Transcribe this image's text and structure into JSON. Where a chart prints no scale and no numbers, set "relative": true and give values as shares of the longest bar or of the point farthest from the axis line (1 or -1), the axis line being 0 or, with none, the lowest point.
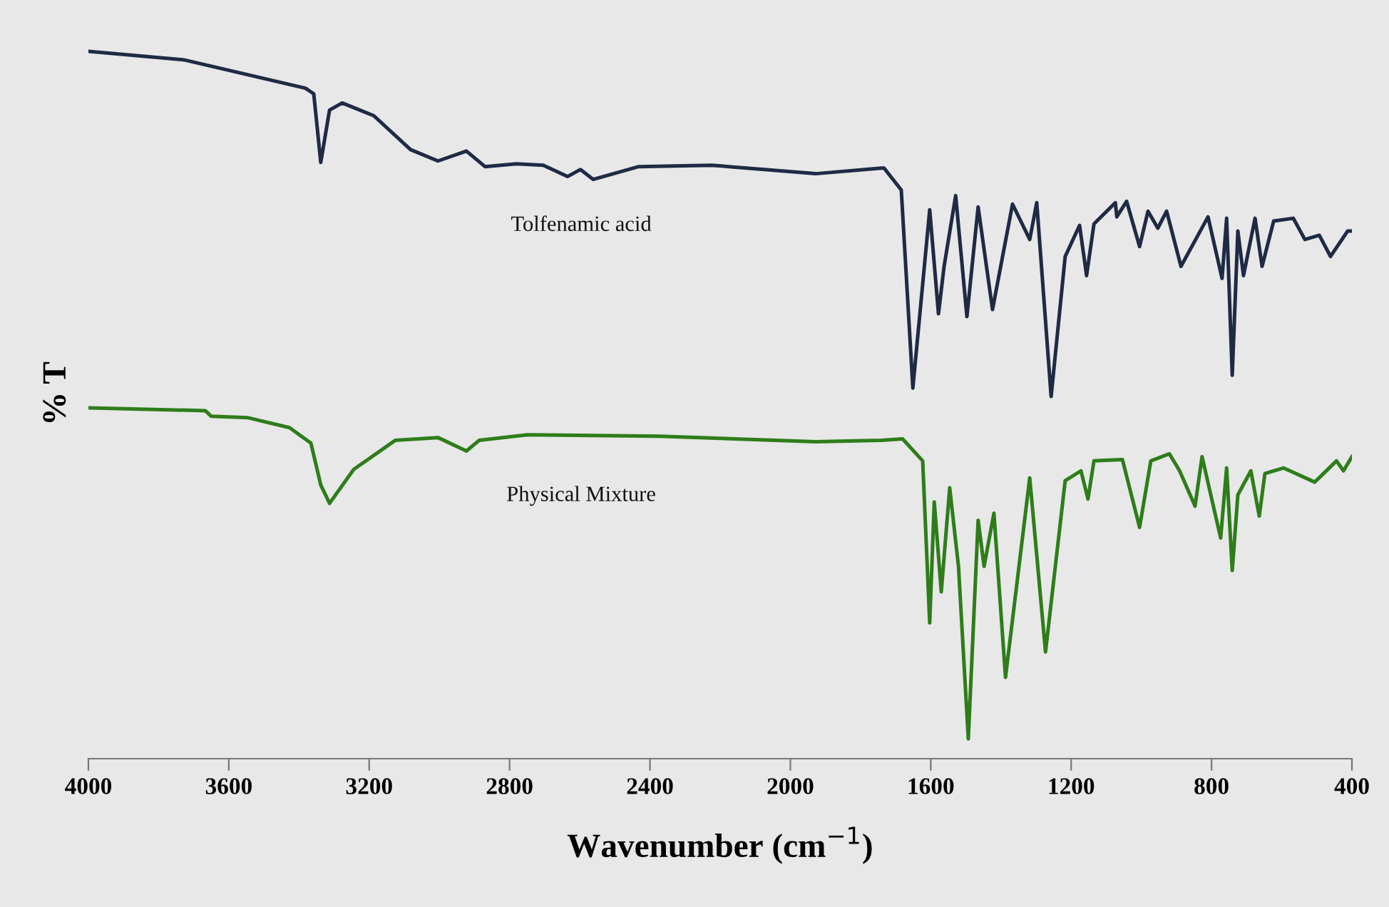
{
  "chart_data": {
    "type": "line",
    "relative": true,
    "xlabel": "Wavenumber (cm$^{−1}$)",
    "ylabel": "% T",
    "xlim": [
      4000,
      400
    ],
    "xticks": [
      4000,
      3600,
      3200,
      2800,
      2400,
      2000,
      1600,
      1200,
      800,
      400
    ],
    "series": [
      {
        "name": "Tolfenamic acid",
        "color": "#1f2a44",
        "x": [
          4000,
          3728,
          3382,
          3358,
          3338,
          3313,
          3277,
          3187,
          3082,
          3004,
          2923,
          2870,
          2781,
          2704,
          2635,
          2598,
          2562,
          2432,
          2224,
          1928,
          1741,
          1733,
          1684,
          1651,
          1603,
          1578,
          1562,
          1529,
          1497,
          1465,
          1424,
          1367,
          1318,
          1298,
          1257,
          1217,
          1176,
          1156,
          1135,
          1074,
          1070,
          1042,
          1005,
          981,
          953,
          928,
          887,
          810,
          770,
          757,
          741,
          725,
          709,
          676,
          656,
          623,
          567,
          534,
          493,
          461,
          412,
          400
        ],
        "values": [
          1.0,
          0.988,
          0.948,
          0.94,
          0.843,
          0.917,
          0.927,
          0.909,
          0.861,
          0.845,
          0.859,
          0.837,
          0.841,
          0.839,
          0.823,
          0.833,
          0.819,
          0.837,
          0.839,
          0.827,
          0.835,
          0.835,
          0.804,
          0.524,
          0.776,
          0.629,
          0.696,
          0.796,
          0.625,
          0.78,
          0.635,
          0.784,
          0.734,
          0.786,
          0.512,
          0.71,
          0.754,
          0.683,
          0.756,
          0.786,
          0.766,
          0.788,
          0.724,
          0.774,
          0.75,
          0.774,
          0.696,
          0.766,
          0.679,
          0.764,
          0.542,
          0.746,
          0.683,
          0.764,
          0.696,
          0.76,
          0.764,
          0.734,
          0.74,
          0.71,
          0.746,
          0.746
        ]
      },
      {
        "name": "Physical Mixture",
        "color": "#2e7d1a",
        "x": [
          4000,
          3667,
          3650,
          3545,
          3427,
          3366,
          3338,
          3313,
          3244,
          3126,
          3004,
          2923,
          2887,
          2749,
          2375,
          1928,
          1741,
          1680,
          1623,
          1603,
          1590,
          1570,
          1546,
          1521,
          1493,
          1465,
          1448,
          1420,
          1387,
          1318,
          1273,
          1217,
          1172,
          1152,
          1135,
          1054,
          1005,
          973,
          920,
          891,
          847,
          827,
          774,
          757,
          741,
          725,
          688,
          664,
          648,
          595,
          506,
          444,
          424,
          400
        ],
        "values": [
          0.496,
          0.492,
          0.484,
          0.482,
          0.468,
          0.446,
          0.387,
          0.361,
          0.409,
          0.45,
          0.454,
          0.435,
          0.45,
          0.458,
          0.456,
          0.448,
          0.45,
          0.452,
          0.421,
          0.192,
          0.363,
          0.236,
          0.383,
          0.272,
          0.028,
          0.337,
          0.272,
          0.347,
          0.115,
          0.397,
          0.151,
          0.393,
          0.407,
          0.367,
          0.421,
          0.423,
          0.327,
          0.421,
          0.431,
          0.407,
          0.357,
          0.427,
          0.312,
          0.411,
          0.266,
          0.373,
          0.407,
          0.343,
          0.403,
          0.411,
          0.391,
          0.421,
          0.407,
          0.427
        ]
      }
    ]
  }
}
